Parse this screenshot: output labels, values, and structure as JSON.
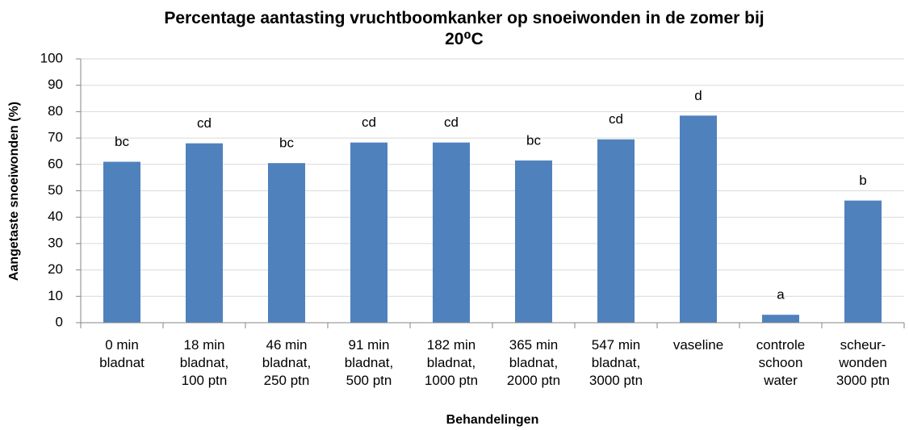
{
  "chart_data": {
    "type": "bar",
    "title": "Percentage aantasting vruchtboomkanker op snoeiwonden in de zomer bij\n20⁰C",
    "y_label": "Aangetaste snoeiwonden (%)",
    "x_label": "Behandelingen",
    "categories": [
      "0 min\nbladnat",
      "18 min\nbladnat,\n100 ptn",
      "46 min\nbladnat,\n250 ptn",
      "91 min\nbladnat,\n500 ptn",
      "182 min\nbladnat,\n1000 ptn",
      "365 min\nbladnat,\n2000 ptn",
      "547 min\nbladnat,\n3000 ptn",
      "vaseline",
      "controle\nschoon\nwater",
      "scheur-\nwonden\n3000 ptn"
    ],
    "values": [
      61,
      68,
      60.5,
      68.3,
      68.3,
      61.5,
      69.5,
      78.5,
      3,
      46.3
    ],
    "annotations": [
      "bc",
      "cd",
      "bc",
      "cd",
      "cd",
      "bc",
      "cd",
      "d",
      "a",
      "b"
    ],
    "color": "#4f81bd",
    "ylim": [
      0,
      100
    ],
    "yticks": [
      0,
      10,
      20,
      30,
      40,
      50,
      60,
      70,
      80,
      90,
      100
    ],
    "grid": true
  }
}
